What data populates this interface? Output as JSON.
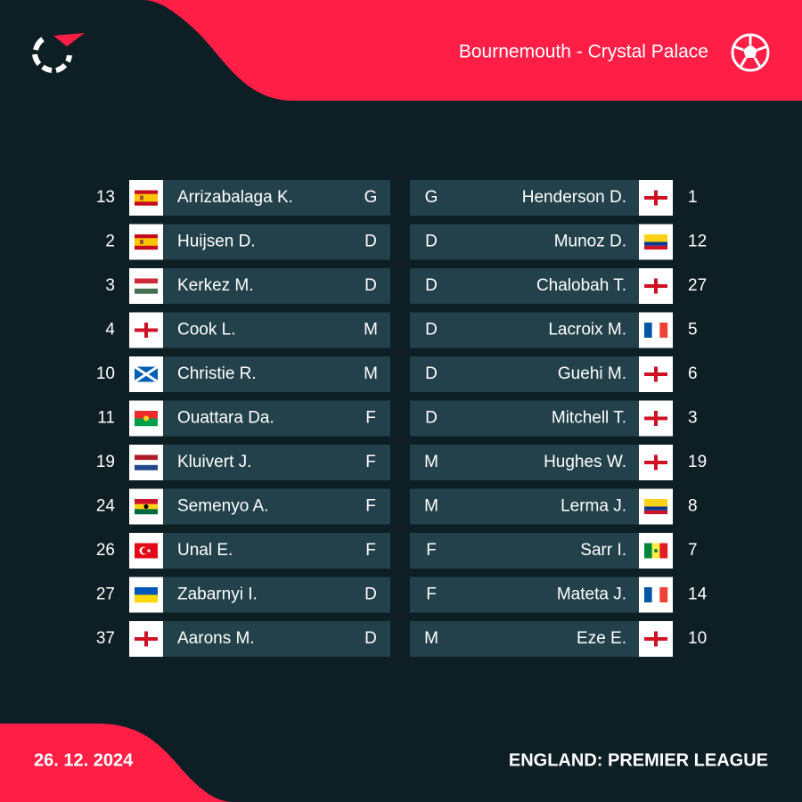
{
  "header": {
    "match": "Bournemouth - Crystal Palace"
  },
  "home": {
    "players": [
      {
        "number": "13",
        "name": "Arrizabalaga K.",
        "position": "G"
      },
      {
        "number": "2",
        "name": "Huijsen D.",
        "position": "D"
      },
      {
        "number": "3",
        "name": "Kerkez M.",
        "position": "D"
      },
      {
        "number": "4",
        "name": "Cook L.",
        "position": "M"
      },
      {
        "number": "10",
        "name": "Christie R.",
        "position": "M"
      },
      {
        "number": "11",
        "name": "Ouattara Da.",
        "position": "F"
      },
      {
        "number": "19",
        "name": "Kluivert J.",
        "position": "F"
      },
      {
        "number": "24",
        "name": "Semenyo A.",
        "position": "F"
      },
      {
        "number": "26",
        "name": "Unal E.",
        "position": "F"
      },
      {
        "number": "27",
        "name": "Zabarnyi I.",
        "position": "D"
      },
      {
        "number": "37",
        "name": "Aarons M.",
        "position": "D"
      }
    ]
  },
  "away": {
    "players": [
      {
        "number": "1",
        "name": "Henderson D.",
        "position": "G"
      },
      {
        "number": "12",
        "name": "Munoz D.",
        "position": "D"
      },
      {
        "number": "27",
        "name": "Chalobah T.",
        "position": "D"
      },
      {
        "number": "5",
        "name": "Lacroix M.",
        "position": "D"
      },
      {
        "number": "6",
        "name": "Guehi M.",
        "position": "D"
      },
      {
        "number": "3",
        "name": "Mitchell T.",
        "position": "D"
      },
      {
        "number": "19",
        "name": "Hughes W.",
        "position": "M"
      },
      {
        "number": "8",
        "name": "Lerma J.",
        "position": "M"
      },
      {
        "number": "7",
        "name": "Sarr I.",
        "position": "F"
      },
      {
        "number": "14",
        "name": "Mateta J.",
        "position": "F"
      },
      {
        "number": "10",
        "name": "Eze E.",
        "position": "M"
      }
    ]
  },
  "footer": {
    "date": "26. 12. 2024",
    "competition": "ENGLAND: PREMIER LEAGUE"
  }
}
